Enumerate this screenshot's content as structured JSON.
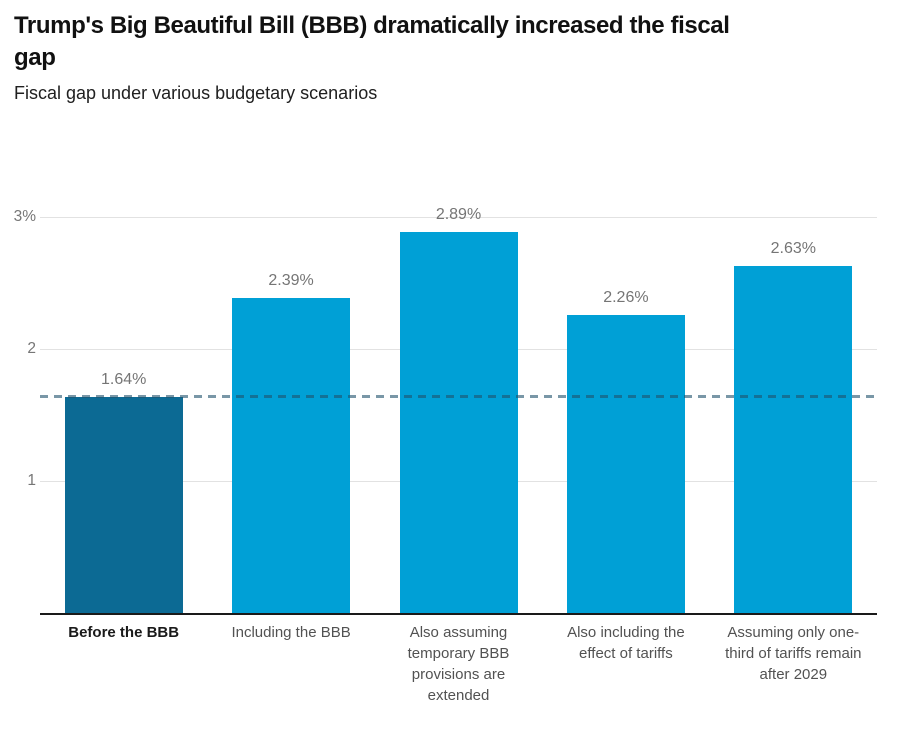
{
  "header": {
    "title_lines": [
      "Trump's Big Beautiful Bill (BBB) dramatically increased the fiscal",
      "gap"
    ],
    "subtitle": "Fiscal gap under various budgetary scenarios"
  },
  "chart_data": {
    "type": "bar",
    "title": "Trump's Big Beautiful Bill (BBB) dramatically increased the fiscal gap",
    "subtitle": "Fiscal gap under various budgetary scenarios",
    "categories": [
      "Before the BBB",
      "Including the BBB",
      "Also assuming temporary BBB provisions are extended",
      "Also including the effect of tariffs",
      "Assuming only one-third of tariffs remain after 2029"
    ],
    "values": [
      1.64,
      2.39,
      2.89,
      2.26,
      2.63
    ],
    "value_labels": [
      "1.64%",
      "2.39%",
      "2.89%",
      "2.26%",
      "2.63%"
    ],
    "xlabel": "",
    "ylabel": "",
    "ylim": [
      0,
      3.35
    ],
    "yticks": [
      {
        "value": 1,
        "label": "1"
      },
      {
        "value": 2,
        "label": "2"
      },
      {
        "value": 3,
        "label": "3%"
      }
    ],
    "grid": true,
    "legend": false,
    "highlight_index": 0,
    "reference_line": {
      "value": 1.64,
      "style": "dashed"
    },
    "colors": {
      "highlight_bar": "#0C6A94",
      "default_bar": "#00A0D6",
      "reference_line": "#20526C",
      "reference_line_opacity": "0.6",
      "gridline": "#E2E2E2",
      "baseline": "#1A1A1A",
      "value_label": "#757575",
      "tick_label": "#767676",
      "category_label": "#525252",
      "category_label_highlight": "#1A1A1A"
    }
  }
}
